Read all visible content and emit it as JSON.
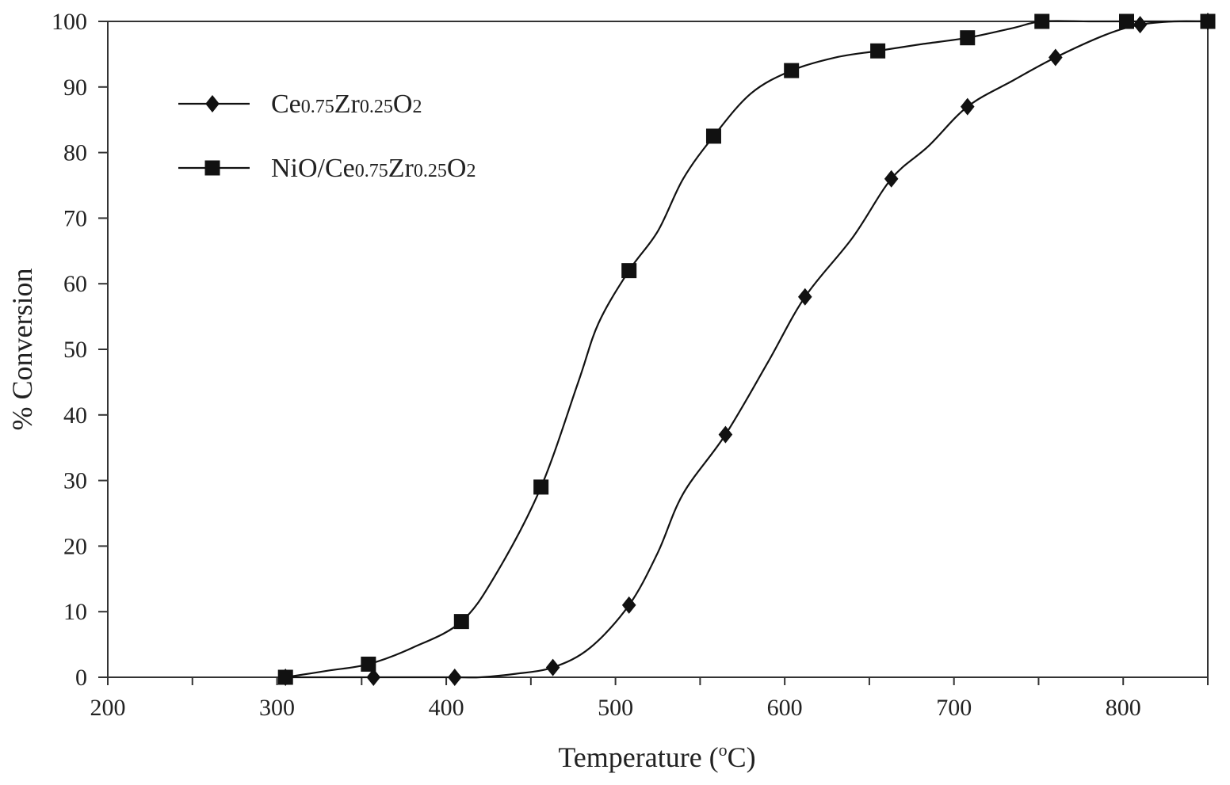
{
  "chart_data": {
    "type": "line",
    "xlabel": "Temperature (oC)",
    "xlabel_parts": {
      "before": "Temperature (",
      "superscript": "o",
      "after": "C)"
    },
    "ylabel": "% Conversion",
    "xlim": [
      200,
      850
    ],
    "ylim": [
      0,
      100
    ],
    "xticks": [
      200,
      300,
      400,
      500,
      600,
      700,
      800
    ],
    "yticks": [
      0,
      10,
      20,
      30,
      40,
      50,
      60,
      70,
      80,
      90,
      100
    ],
    "grid": false,
    "legend_position": "top-left",
    "series": [
      {
        "name": "Ce0.75Zr0.25O2",
        "name_parts": [
          {
            "text": "Ce",
            "sub": false
          },
          {
            "text": "0.75",
            "sub": true
          },
          {
            "text": "Zr",
            "sub": false
          },
          {
            "text": "0.25",
            "sub": true
          },
          {
            "text": "O",
            "sub": false
          },
          {
            "text": "2",
            "sub": true
          }
        ],
        "marker": "diamond",
        "color": "#111111",
        "x": [
          305,
          357,
          405,
          420,
          440,
          463,
          485,
          508,
          525,
          540,
          565,
          590,
          612,
          640,
          663,
          685,
          708,
          735,
          760,
          790,
          810,
          830,
          850
        ],
        "y": [
          0,
          0,
          0,
          0,
          0.5,
          1.5,
          4.5,
          11,
          19,
          28,
          37,
          48,
          58,
          67,
          76,
          81,
          87,
          91,
          94.5,
          98,
          99.5,
          100,
          100
        ]
      },
      {
        "name": "NiO/Ce0.75Zr0.25O2",
        "name_parts": [
          {
            "text": "NiO/Ce",
            "sub": false
          },
          {
            "text": "0.75",
            "sub": true
          },
          {
            "text": "Zr",
            "sub": false
          },
          {
            "text": "0.25",
            "sub": true
          },
          {
            "text": "O",
            "sub": false
          },
          {
            "text": "2",
            "sub": true
          }
        ],
        "marker": "square",
        "color": "#111111",
        "x": [
          305,
          330,
          354,
          380,
          409,
          430,
          456,
          478,
          490,
          508,
          525,
          540,
          558,
          580,
          604,
          630,
          655,
          680,
          708,
          735,
          752,
          780,
          802,
          825,
          850
        ],
        "y": [
          0,
          1,
          2,
          4.5,
          8.5,
          16,
          29,
          45,
          54,
          62,
          68,
          76,
          82.5,
          89,
          92.5,
          94.5,
          95.5,
          96.5,
          97.5,
          99,
          100,
          100,
          100,
          100,
          100
        ]
      }
    ]
  }
}
